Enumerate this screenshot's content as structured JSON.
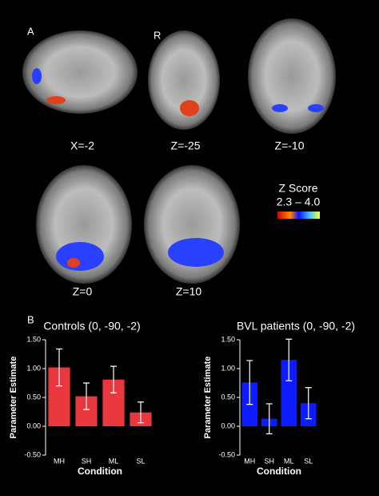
{
  "figure": {
    "panel_a": "A",
    "panel_b": "B",
    "orientation": "R",
    "slices": [
      "X=-2",
      "Z=-25",
      "Z=-10",
      "Z=0",
      "Z=10"
    ],
    "colorbar_title": "Z Score",
    "colorbar_range": "2.3 – 4.0"
  },
  "chart_data": [
    {
      "type": "bar",
      "title": "Controls (0, -90, -2)",
      "x_label": "Condition",
      "y_label": "Parameter Estimate",
      "categories": [
        "MH",
        "SH",
        "ML",
        "SL"
      ],
      "values": [
        1.02,
        0.52,
        0.81,
        0.24
      ],
      "errors": [
        0.32,
        0.23,
        0.23,
        0.18
      ],
      "color": "#e8373f",
      "ylim": [
        -0.5,
        1.5
      ],
      "yticks": [
        {
          "value": -0.5,
          "label": "-0.50"
        },
        {
          "value": 0,
          "label": "0.00"
        },
        {
          "value": 0.5,
          "label": "0.50"
        },
        {
          "value": 1,
          "label": "1.00"
        },
        {
          "value": 1.5,
          "label": "1.50"
        }
      ]
    },
    {
      "type": "bar",
      "title": "BVL patients (0, -90, -2)",
      "x_label": "Condition",
      "y_label": "Parameter Estimate",
      "categories": [
        "MH",
        "SH",
        "ML",
        "SL"
      ],
      "values": [
        0.76,
        0.13,
        1.15,
        0.4
      ],
      "errors": [
        0.38,
        0.26,
        0.36,
        0.27
      ],
      "color": "#0c1cff",
      "ylim": [
        -0.5,
        1.5
      ],
      "yticks": [
        {
          "value": -0.5,
          "label": "-0.50"
        },
        {
          "value": 0,
          "label": "0.00"
        },
        {
          "value": 0.5,
          "label": "0.50"
        },
        {
          "value": 1,
          "label": "1.00"
        },
        {
          "value": 1.5,
          "label": "1.50"
        }
      ]
    }
  ]
}
